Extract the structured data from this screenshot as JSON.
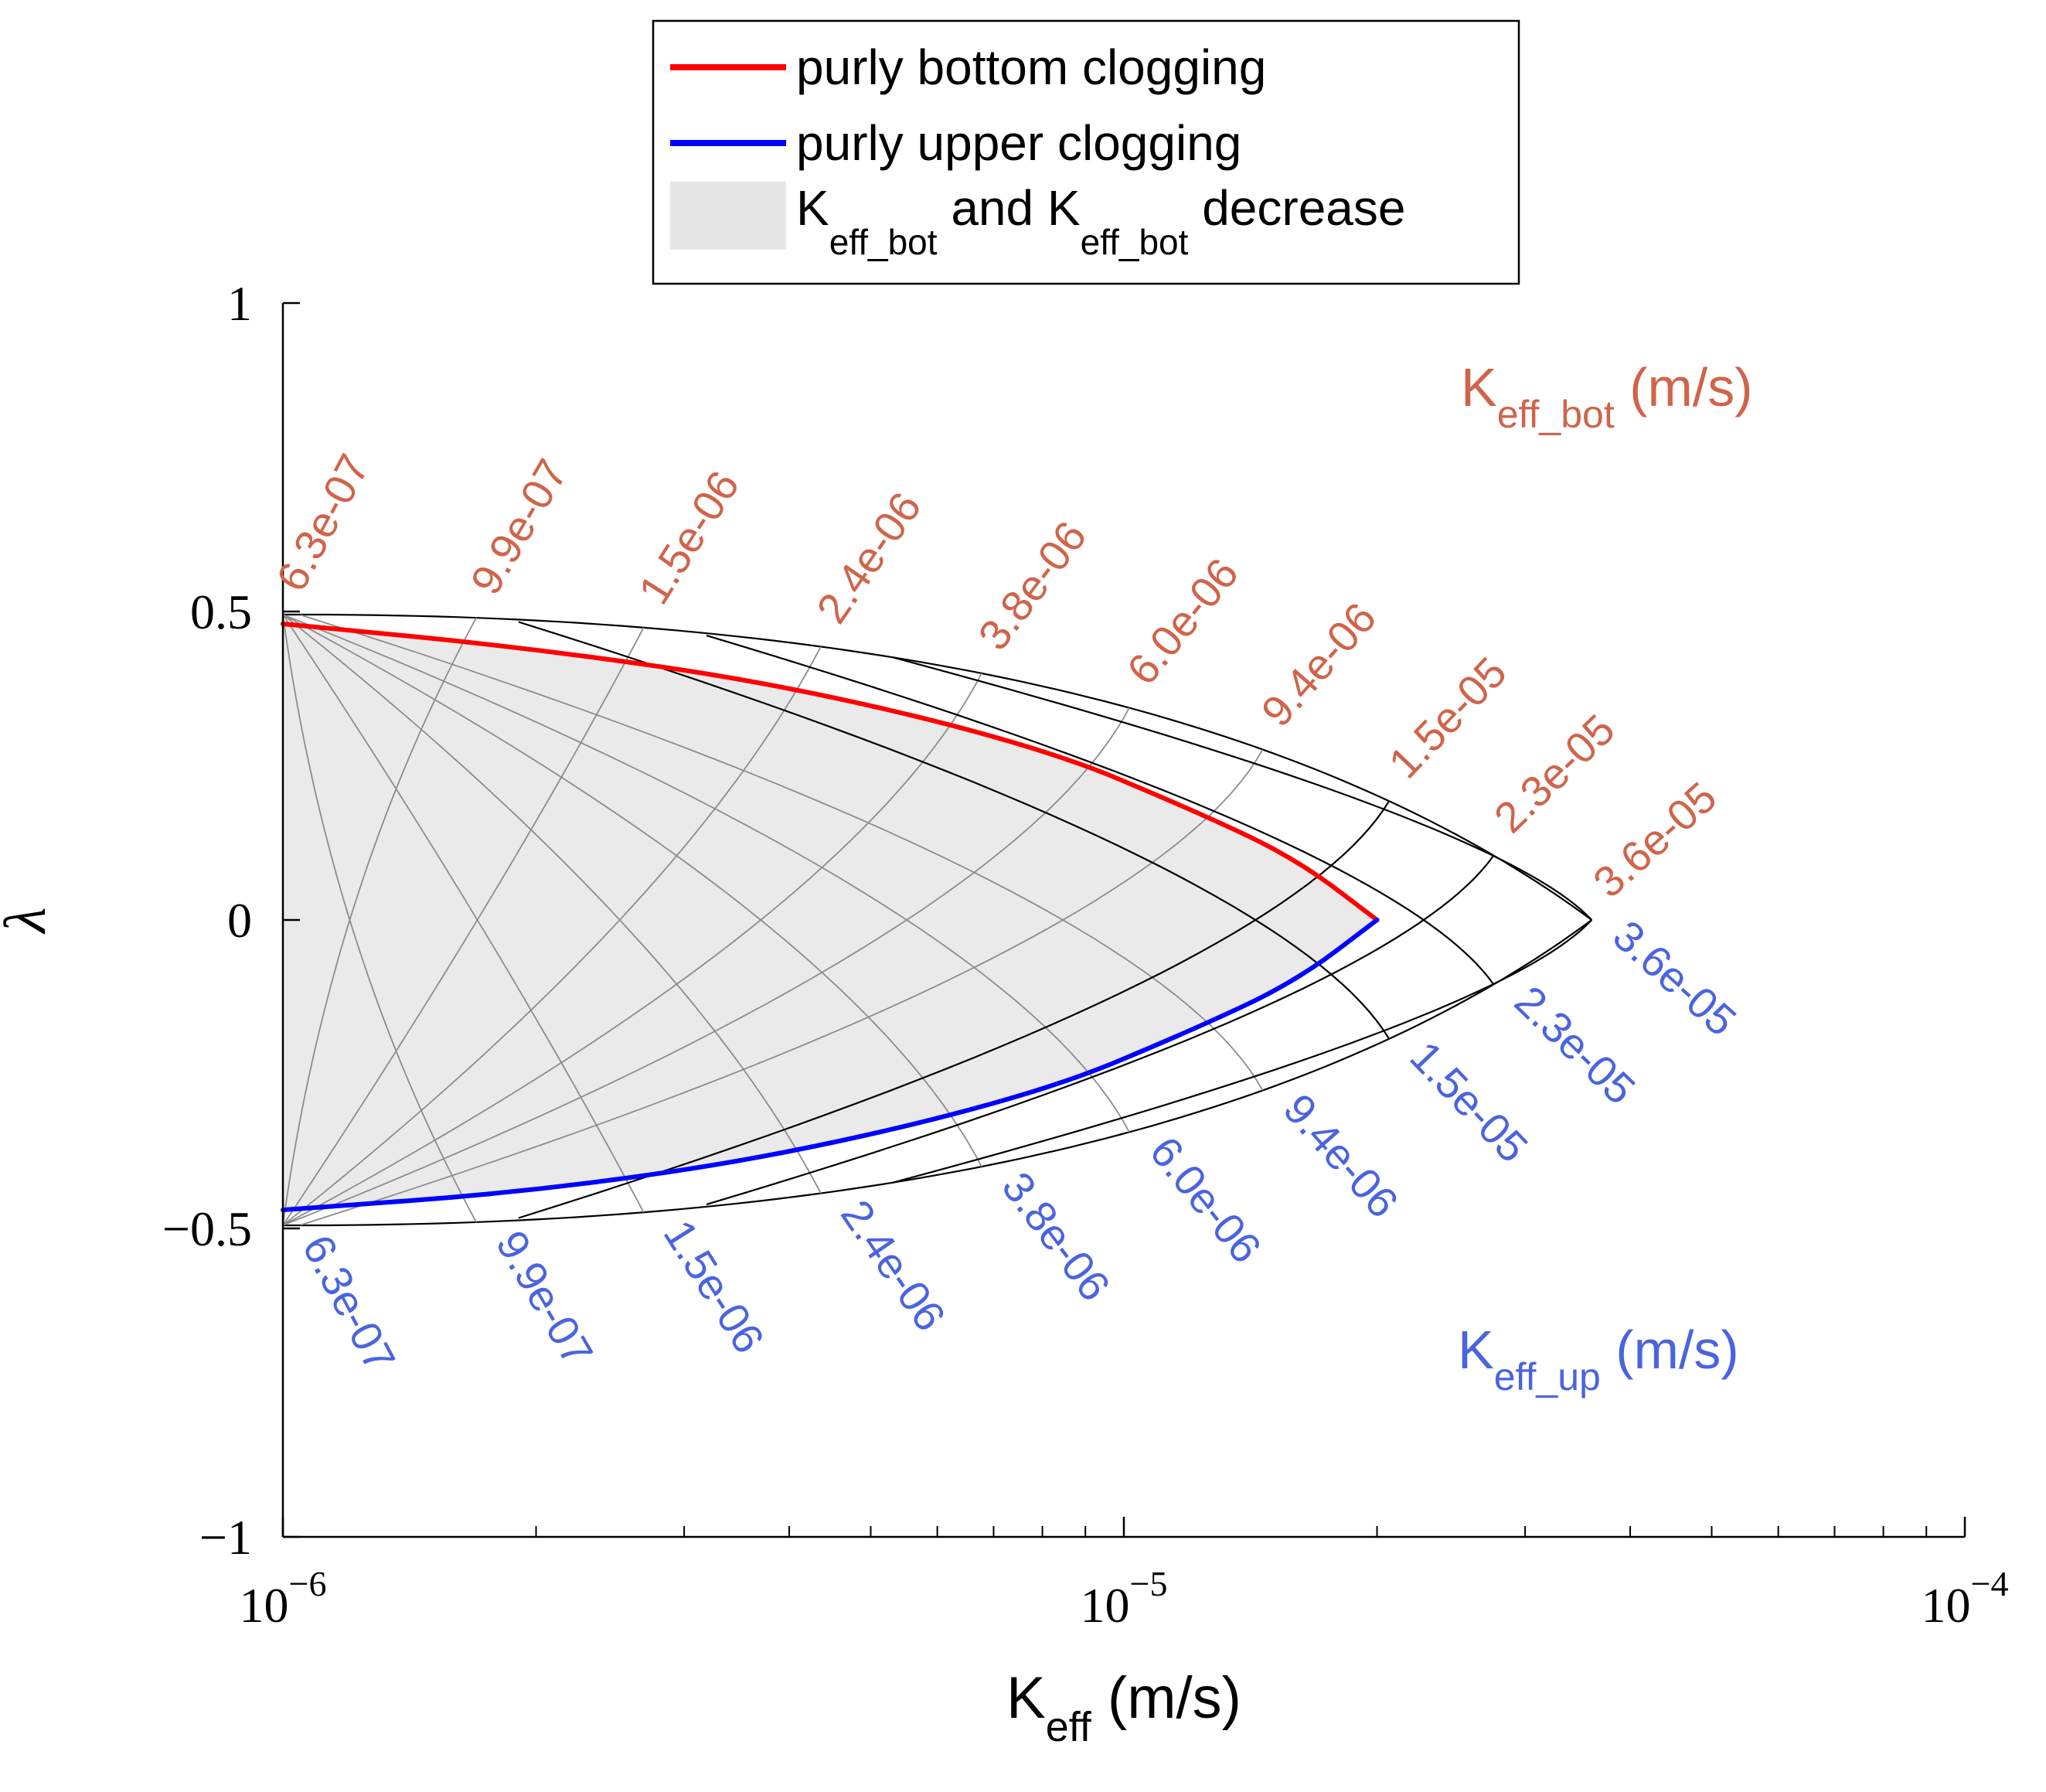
{
  "chart_data": {
    "type": "line",
    "xscale": "log",
    "xlim": [
      1e-06,
      0.0001
    ],
    "ylim": [
      -1,
      1
    ],
    "x_ticks": [
      {
        "base": "10",
        "exp": "−6"
      },
      {
        "base": "10",
        "exp": "−5"
      },
      {
        "base": "10",
        "exp": "−4"
      }
    ],
    "y_ticks": [
      {
        "value": 1,
        "label": "1"
      },
      {
        "value": 0.5,
        "label": "0.5"
      },
      {
        "value": 0,
        "label": "0"
      },
      {
        "value": -0.5,
        "label": "−0.5"
      },
      {
        "value": -1,
        "label": "−1"
      }
    ],
    "xlabel": {
      "main": "K",
      "sub": "eff",
      "unit": " (m/s)"
    },
    "ylabel": "λ",
    "legend": {
      "position": "top-center",
      "entries": [
        {
          "name": "purly bottom clogging",
          "color": "#ff0000",
          "kind": "line"
        },
        {
          "name": "purly upper clogging",
          "color": "#0000ff",
          "kind": "line"
        },
        {
          "parts": [
            {
              "t": "K",
              "sub": false
            },
            {
              "t": "eff_bot",
              "sub": true
            },
            {
              "t": " and K",
              "sub": false
            },
            {
              "t": "eff_bot",
              "sub": true
            },
            {
              "t": " decrease",
              "sub": false
            }
          ],
          "color": "#e6e6e6",
          "kind": "patch"
        }
      ]
    },
    "grid_family_bot": {
      "title": {
        "main": "K",
        "sub": "eff_bot",
        "unit": " (m/s)"
      },
      "color": "#d0644a",
      "values": [
        6.3e-07,
        9.9e-07,
        1.5e-06,
        2.4e-06,
        3.8e-06,
        6e-06,
        9.4e-06,
        1.5e-05,
        2.3e-05,
        3.6e-05
      ],
      "labels": [
        "6.3e-07",
        "9.9e-07",
        "1.5e-06",
        "2.4e-06",
        "3.8e-06",
        "6.0e-06",
        "9.4e-06",
        "1.5e-05",
        "2.3e-05",
        "3.6e-05"
      ]
    },
    "grid_family_up": {
      "title": {
        "main": "K",
        "sub": "eff_up",
        "unit": " (m/s)"
      },
      "color": "#4a64e0",
      "values": [
        6.3e-07,
        9.9e-07,
        1.5e-06,
        2.4e-06,
        3.8e-06,
        6e-06,
        9.4e-06,
        1.5e-05,
        2.3e-05,
        3.6e-05
      ],
      "labels": [
        "6.3e-07",
        "9.9e-07",
        "1.5e-06",
        "2.4e-06",
        "3.8e-06",
        "6.0e-06",
        "9.4e-06",
        "1.5e-05",
        "2.3e-05",
        "3.6e-05"
      ]
    },
    "region_tip_keff": 2e-05,
    "region_tip_lambda": 0.0,
    "series": [
      {
        "name": "purly bottom clogging",
        "color": "#ff0000",
        "x": [
          1e-06,
          2e-06,
          4e-06,
          8e-06,
          1.2e-05,
          1.6e-05,
          2e-05
        ],
        "y": [
          0.48,
          0.44,
          0.38,
          0.28,
          0.18,
          0.1,
          0.0
        ]
      },
      {
        "name": "purly upper clogging",
        "color": "#0000ff",
        "x": [
          1e-06,
          2e-06,
          4e-06,
          8e-06,
          1.2e-05,
          1.6e-05,
          2e-05
        ],
        "y": [
          -0.47,
          -0.44,
          -0.38,
          -0.28,
          -0.18,
          -0.1,
          0.0
        ]
      }
    ]
  }
}
